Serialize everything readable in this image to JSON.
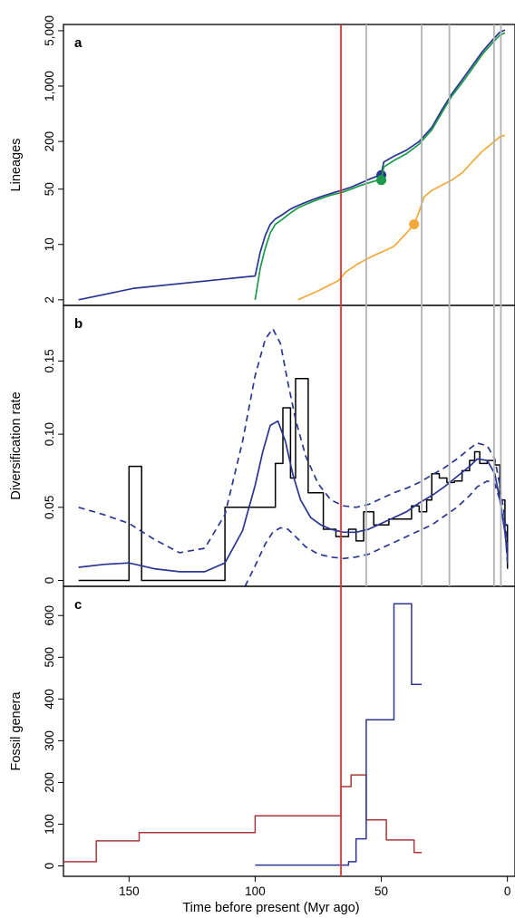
{
  "chart_data": [
    {
      "type": "line",
      "panel_label": "a",
      "ylabel": "Lineages",
      "yscale": "log",
      "yticks": [
        2,
        10,
        50,
        200,
        1000,
        5000
      ],
      "ytick_labels": [
        "2",
        "10",
        "50",
        "200",
        "1,000",
        "5,000"
      ],
      "xlim": [
        176,
        -3
      ],
      "ylim": [
        1.7,
        6000
      ],
      "series": [
        {
          "color": "#2b3592",
          "marker": {
            "x": 50,
            "y": 75
          },
          "x": [
            170,
            148,
            100,
            98,
            96,
            94,
            92,
            89,
            86,
            83,
            80,
            77,
            74,
            70,
            66,
            62,
            58,
            55,
            52,
            50,
            49,
            45,
            40,
            35,
            30,
            26,
            22,
            18,
            14,
            10,
            6,
            3,
            1
          ],
          "y": [
            2,
            2.8,
            4,
            8,
            13,
            18,
            21,
            24,
            28,
            31,
            34,
            37,
            40,
            44,
            48,
            53,
            60,
            66,
            72,
            78,
            110,
            130,
            155,
            200,
            300,
            500,
            800,
            1200,
            1800,
            2700,
            3800,
            4800,
            5100
          ]
        },
        {
          "color": "#1a9a4a",
          "marker": {
            "x": 50,
            "y": 65
          },
          "x": [
            100,
            98,
            96,
            94,
            92,
            89,
            86,
            83,
            80,
            77,
            74,
            70,
            66,
            62,
            58,
            55,
            52,
            50,
            49,
            45,
            40,
            35,
            30,
            26,
            22,
            18,
            14,
            10,
            6,
            3,
            1
          ],
          "y": [
            2,
            5,
            9,
            14,
            18,
            21,
            25,
            29,
            32,
            35,
            38,
            42,
            45,
            50,
            56,
            60,
            64,
            68,
            95,
            115,
            140,
            185,
            280,
            460,
            750,
            1100,
            1650,
            2500,
            3500,
            4400,
            4700
          ]
        },
        {
          "color": "#f0a93a",
          "marker": {
            "x": 37,
            "y": 18
          },
          "x": [
            83,
            75,
            67,
            64,
            60,
            56,
            52,
            48,
            45,
            43,
            40,
            37,
            35,
            33,
            30,
            26,
            22,
            18,
            14,
            10,
            6,
            3,
            1
          ],
          "y": [
            2,
            2.6,
            3.5,
            4.5,
            5.5,
            6.5,
            7.5,
            8.5,
            9.5,
            11,
            14,
            18,
            26,
            40,
            48,
            56,
            65,
            80,
            110,
            150,
            190,
            230,
            240
          ]
        }
      ]
    },
    {
      "type": "line",
      "panel_label": "b",
      "ylabel": "Diversification rate",
      "yticks": [
        0,
        0.05,
        0.1,
        0.15
      ],
      "ytick_labels": [
        "0",
        "0.05",
        "0.10",
        "0.15"
      ],
      "xlim": [
        176,
        -3
      ],
      "ylim": [
        -0.004,
        0.188
      ],
      "series": [
        {
          "style": "step",
          "color": "#000000",
          "x": [
            170,
            150,
            145,
            112,
            100,
            92,
            89,
            86,
            84,
            79,
            73,
            68,
            63,
            60,
            57,
            53,
            47,
            43,
            38,
            35,
            32,
            30,
            27,
            24,
            21,
            18,
            15,
            13,
            11,
            8,
            5,
            3,
            1,
            0
          ],
          "y": [
            0,
            0.078,
            0,
            0.05,
            0.05,
            0.08,
            0.118,
            0.07,
            0.138,
            0.06,
            0.035,
            0.03,
            0.035,
            0.027,
            0.047,
            0.038,
            0.042,
            0.042,
            0.051,
            0.047,
            0.055,
            0.073,
            0.07,
            0.067,
            0.068,
            0.075,
            0.082,
            0.088,
            0.08,
            0.082,
            0.079,
            0.055,
            0.038,
            0.008
          ]
        },
        {
          "style": "solid",
          "color": "#2b3592",
          "x": [
            170,
            160,
            150,
            140,
            130,
            120,
            112,
            105,
            100,
            97,
            94,
            91,
            88,
            85,
            82,
            78,
            74,
            70,
            65,
            60,
            55,
            50,
            45,
            40,
            35,
            30,
            25,
            20,
            15,
            12,
            8,
            5,
            3,
            1,
            0
          ],
          "y": [
            0.009,
            0.011,
            0.012,
            0.008,
            0.006,
            0.006,
            0.012,
            0.034,
            0.065,
            0.088,
            0.106,
            0.109,
            0.095,
            0.072,
            0.055,
            0.043,
            0.038,
            0.035,
            0.033,
            0.033,
            0.035,
            0.039,
            0.043,
            0.047,
            0.053,
            0.058,
            0.064,
            0.071,
            0.078,
            0.083,
            0.082,
            0.073,
            0.055,
            0.033,
            0.016
          ]
        },
        {
          "style": "dashed",
          "color": "#2b3592",
          "x": [
            170,
            160,
            150,
            140,
            130,
            120,
            112,
            105,
            100,
            96,
            93,
            90,
            87,
            84,
            80,
            75,
            70,
            65,
            60,
            55,
            50,
            45,
            40,
            35,
            30,
            25,
            20,
            15,
            12,
            8,
            5,
            3,
            1,
            0
          ],
          "y": [
            0.05,
            0.045,
            0.039,
            0.028,
            0.019,
            0.022,
            0.045,
            0.095,
            0.14,
            0.165,
            0.172,
            0.162,
            0.135,
            0.11,
            0.085,
            0.066,
            0.055,
            0.051,
            0.05,
            0.052,
            0.056,
            0.06,
            0.063,
            0.067,
            0.072,
            0.077,
            0.083,
            0.09,
            0.094,
            0.092,
            0.083,
            0.065,
            0.042,
            0.021
          ]
        },
        {
          "style": "dashed",
          "color": "#2b3592",
          "x": [
            104,
            100,
            96,
            93,
            90,
            87,
            84,
            80,
            75,
            70,
            65,
            60,
            55,
            50,
            45,
            40,
            35,
            30,
            25,
            20,
            15,
            12,
            8,
            5,
            3,
            1,
            0
          ],
          "y": [
            -0.004,
            0.01,
            0.025,
            0.033,
            0.036,
            0.035,
            0.03,
            0.023,
            0.018,
            0.016,
            0.015,
            0.016,
            0.018,
            0.022,
            0.026,
            0.03,
            0.034,
            0.038,
            0.044,
            0.05,
            0.058,
            0.064,
            0.068,
            0.066,
            0.055,
            0.036,
            0.012
          ]
        }
      ]
    },
    {
      "type": "line",
      "panel_label": "c",
      "ylabel": "Fossil genera",
      "xlabel": "Time before present (Myr ago)",
      "yticks": [
        0,
        100,
        200,
        300,
        400,
        500,
        600
      ],
      "ytick_labels": [
        "0",
        "100",
        "200",
        "300",
        "400",
        "500",
        "600"
      ],
      "xticks": [
        150,
        100,
        50,
        0
      ],
      "xtick_labels": [
        "150",
        "100",
        "50",
        "0"
      ],
      "xlim": [
        176,
        -3
      ],
      "ylim": [
        -25,
        670
      ],
      "series": [
        {
          "style": "step",
          "color": "#a8373a",
          "x": [
            176,
            163,
            146,
            100,
            66,
            62,
            56,
            48,
            42,
            37,
            34
          ],
          "y": [
            10,
            60,
            80,
            120,
            190,
            218,
            110,
            62,
            62,
            32,
            32
          ]
        },
        {
          "style": "step",
          "color": "#2b3592",
          "x": [
            100,
            66,
            63,
            60,
            56,
            50,
            45,
            38,
            34
          ],
          "y": [
            2,
            2,
            10,
            65,
            350,
            350,
            628,
            435,
            435
          ]
        }
      ]
    }
  ],
  "shared": {
    "red_line_x": 66,
    "red_color": "#e3342f",
    "grey_lines_x": [
      56,
      34,
      23,
      5.3,
      2.6
    ],
    "grey_color": "#b3b3b3"
  }
}
